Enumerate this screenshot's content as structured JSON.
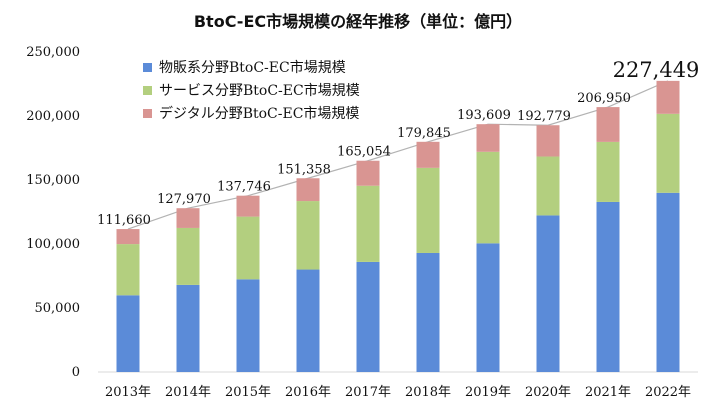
{
  "chart_data": {
    "type": "bar",
    "stacked": true,
    "title": "BtoC-EC市場規模の経年推移（単位：億円）",
    "categories": [
      "2013年",
      "2014年",
      "2015年",
      "2016年",
      "2017年",
      "2018年",
      "2019年",
      "2020年",
      "2021年",
      "2022年"
    ],
    "series": [
      {
        "name": "物販系分野BtoC-EC市場規模",
        "color": "#5b8bd8",
        "values": [
          59931,
          68043,
          72398,
          80043,
          86008,
          92992,
          100515,
          122333,
          132865,
          139997
        ]
      },
      {
        "name": "サービス分野BtoC-EC市場規模",
        "color": "#b3cf7f",
        "values": [
          40000,
          44500,
          49000,
          53500,
          59500,
          66500,
          71500,
          46000,
          46900,
          61700
        ]
      },
      {
        "name": "デジタル分野BtoC-EC市場規模",
        "color": "#d99592",
        "values": [
          11729,
          15427,
          16348,
          17815,
          19546,
          20353,
          21594,
          24446,
          27185,
          25752
        ]
      }
    ],
    "totals": [
      111660,
      127970,
      137746,
      151358,
      165054,
      179845,
      193609,
      192779,
      206950,
      227449
    ],
    "total_labels": [
      "111,660",
      "127,970",
      "137,746",
      "151,358",
      "165,054",
      "179,845",
      "193,609",
      "192,779",
      "206,950",
      "227,449"
    ],
    "y_ticks": [
      "0",
      "50,000",
      "100,000",
      "150,000",
      "200,000",
      "250,000"
    ],
    "ylim": [
      0,
      250000
    ],
    "legend_position": "top-left",
    "trend_line_color": "#b3b3b3"
  }
}
